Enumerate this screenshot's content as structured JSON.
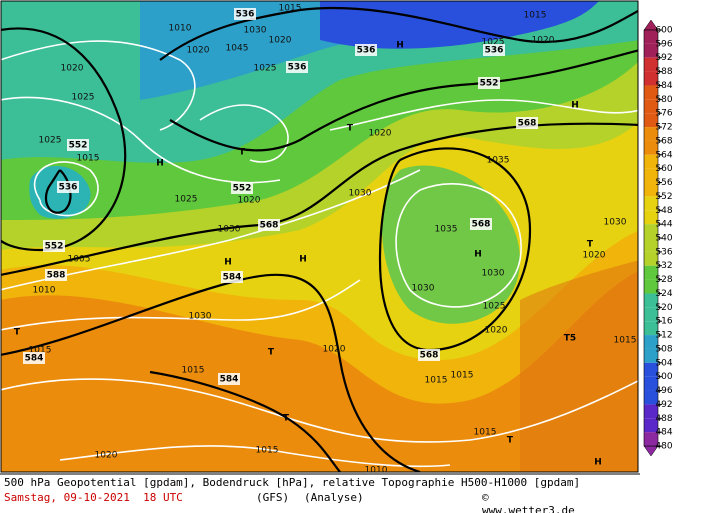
{
  "map_labels": [
    "536",
    "1015",
    "1010",
    "1020",
    "1045",
    "1030",
    "1020",
    "536",
    "1025",
    "536",
    "H",
    "1025",
    "536",
    "1020",
    "1015",
    "552",
    "568",
    "H",
    "1035",
    "1020",
    "1025",
    "1025",
    "552",
    "1015",
    "536",
    "H",
    "1025",
    "552",
    "1020",
    "T",
    "T",
    "1020",
    "1030",
    "568",
    "1030",
    "552",
    "1005",
    "588",
    "1010",
    "H",
    "584",
    "H",
    "1035",
    "568",
    "H",
    "1030",
    "1030",
    "1025",
    "1020",
    "1030",
    "1015",
    "584",
    "T",
    "T",
    "1020",
    "1015",
    "584",
    "568",
    "1015",
    "1015",
    "T",
    "1015",
    "T",
    "1020",
    "1015",
    "1010",
    "H",
    "T5",
    "1015",
    "1020",
    "T",
    "1030"
  ],
  "colorbar": {
    "values": [
      600,
      596,
      592,
      588,
      584,
      580,
      576,
      572,
      568,
      564,
      560,
      556,
      552,
      548,
      544,
      540,
      536,
      532,
      528,
      524,
      520,
      516,
      512,
      508,
      504,
      500,
      496,
      492,
      488,
      484,
      480
    ]
  },
  "footer": {
    "line1": "500 hPa Geopotential [gpdam], Bodendruck [hPa], relative Topographie H500-H1000 [gpdam]",
    "date": "Samstag, 09-10-2021  18 UTC",
    "model": "(GFS)",
    "run": "(Analyse)",
    "credit": "© www.wetter3.de"
  }
}
